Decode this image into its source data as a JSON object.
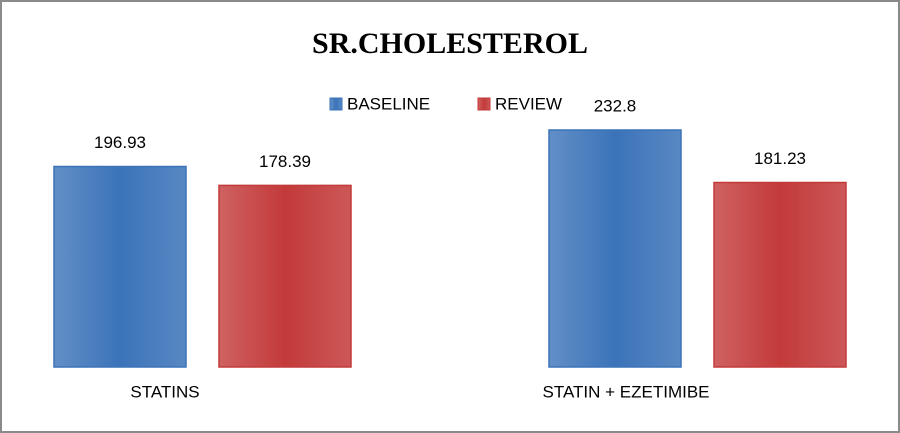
{
  "chart_data": {
    "type": "bar",
    "title": "SR.CHOLESTEROL",
    "categories": [
      "STATINS",
      "STATIN + EZETIMIBE"
    ],
    "series": [
      {
        "name": "BASELINE",
        "color": "#3b73b9",
        "values": [
          196.93,
          232.8
        ]
      },
      {
        "name": "REVIEW",
        "color": "#c33a3a",
        "values": [
          178.39,
          181.23
        ]
      }
    ],
    "legend": "top"
  }
}
